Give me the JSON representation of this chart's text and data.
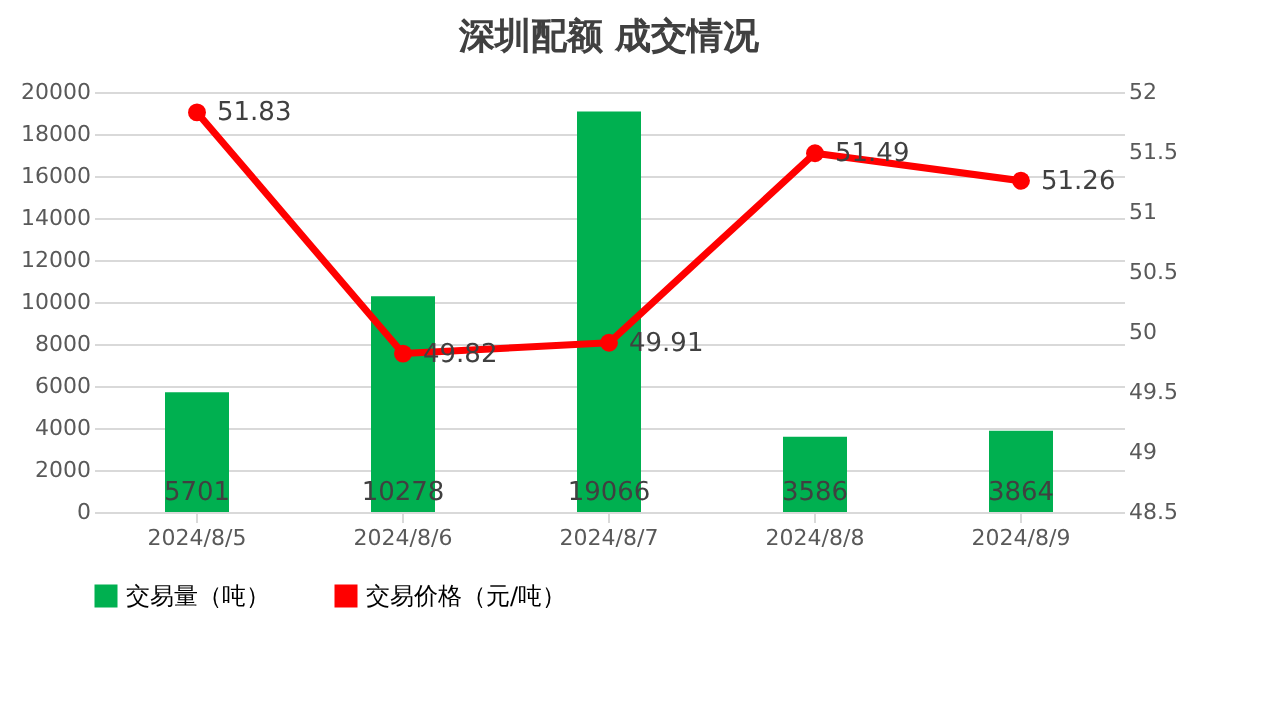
{
  "chart_data": {
    "type": "bar",
    "title": "深圳配额 成交情况",
    "categories": [
      "2024/8/5",
      "2024/8/6",
      "2024/8/7",
      "2024/8/8",
      "2024/8/9"
    ],
    "series": [
      {
        "name": "交易量（吨）",
        "color": "#00b050",
        "values": [
          5701,
          10278,
          19066,
          3586,
          3864
        ]
      },
      {
        "name": "交易价格（元/吨）",
        "type": "line",
        "axis": "y2",
        "color": "#ff0000",
        "values": [
          51.83,
          49.82,
          49.91,
          51.49,
          51.26
        ]
      }
    ],
    "ylim": [
      0,
      20000
    ],
    "yticks": [
      0,
      2000,
      4000,
      6000,
      8000,
      10000,
      12000,
      14000,
      16000,
      18000,
      20000
    ],
    "y2lim": [
      48.5,
      52
    ],
    "y2ticks": [
      48.5,
      49,
      49.5,
      50,
      50.5,
      51,
      51.5,
      52
    ],
    "data_labels": true,
    "grid": "y",
    "legend": "bottom",
    "marker": "circle"
  }
}
